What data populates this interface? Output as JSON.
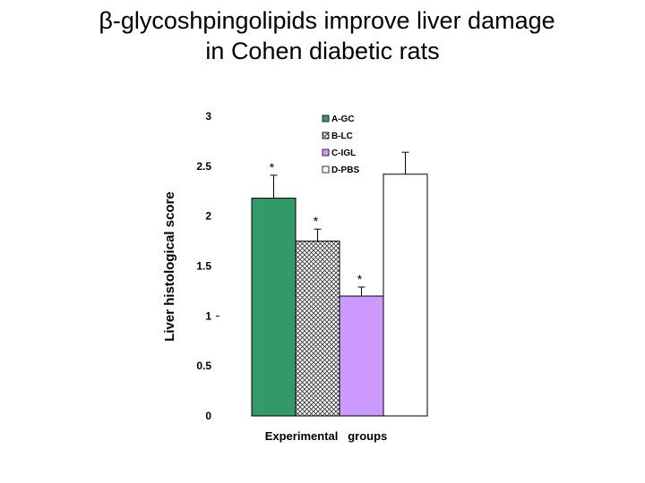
{
  "title_line1": "β-glycoshpingolipids improve liver damage",
  "title_line2": "in Cohen diabetic rats",
  "chart_data": {
    "type": "bar",
    "title": "β-glycoshpingolipids improve liver damage in Cohen diabetic rats",
    "xlabel": "Experimental   groups",
    "ylabel": "Liver histological score",
    "ylim": [
      0,
      3
    ],
    "yticks": [
      0,
      0.5,
      1,
      1.5,
      2,
      2.5,
      3
    ],
    "ytick_labels": [
      "0",
      "0.5",
      "1",
      "1.5",
      "2",
      "2.5",
      "3"
    ],
    "series": [
      {
        "name": "A-GC",
        "value": 2.18,
        "error": 0.23,
        "significant": true,
        "color": "#339966",
        "pattern": "solid"
      },
      {
        "name": "B-LC",
        "value": 1.75,
        "error": 0.12,
        "significant": true,
        "color": "#ffffff",
        "pattern": "hatch"
      },
      {
        "name": "C-IGL",
        "value": 1.2,
        "error": 0.09,
        "significant": true,
        "color": "#cc99ff",
        "pattern": "solid"
      },
      {
        "name": "D-PBS",
        "value": 2.42,
        "error": 0.22,
        "significant": false,
        "color": "#ffffff",
        "pattern": "solid"
      }
    ],
    "significance_marker": "*",
    "legend_position": "top-right",
    "grid": false
  }
}
